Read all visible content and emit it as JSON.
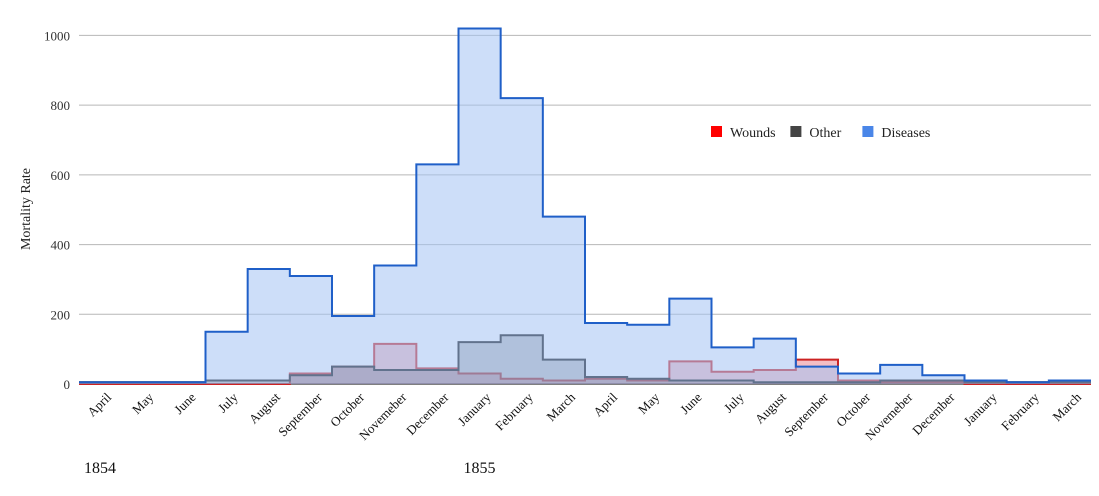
{
  "chart_data": {
    "type": "area",
    "title": "",
    "xlabel": "",
    "ylabel": "Mortality Rate",
    "ylim": [
      0,
      1050
    ],
    "yticks": [
      0,
      200,
      400,
      600,
      800,
      1000
    ],
    "grid": true,
    "legend_position": "top-right",
    "categories": [
      "April",
      "May",
      "June",
      "July",
      "August",
      "September",
      "October",
      "Novemeber",
      "December",
      "January",
      "February",
      "March",
      "April",
      "May",
      "June",
      "July",
      "August",
      "September",
      "October",
      "Novemeber",
      "December",
      "January",
      "February",
      "March"
    ],
    "year_labels": [
      {
        "label": "1854",
        "index": 0
      },
      {
        "label": "1855",
        "index": 9
      }
    ],
    "series": [
      {
        "name": "Wounds",
        "color": "#ff0000",
        "fill": "rgba(220,40,60,0.30)",
        "stroke": "#cc2222",
        "values": [
          0,
          0,
          0,
          0,
          0,
          30,
          50,
          115,
          45,
          30,
          15,
          10,
          15,
          10,
          65,
          35,
          40,
          70,
          10,
          5,
          5,
          0,
          0,
          0
        ]
      },
      {
        "name": "Other",
        "color": "#444444",
        "fill": "rgba(40,40,40,0.30)",
        "stroke": "#111111",
        "values": [
          5,
          5,
          5,
          10,
          10,
          25,
          50,
          40,
          40,
          120,
          140,
          70,
          20,
          15,
          10,
          10,
          5,
          5,
          5,
          10,
          10,
          5,
          5,
          5
        ]
      },
      {
        "name": "Diseases",
        "color": "#4a86e8",
        "fill": "rgba(164,194,244,0.55)",
        "stroke": "#1f5fc8",
        "values": [
          5,
          5,
          5,
          150,
          330,
          310,
          195,
          340,
          630,
          1020,
          820,
          480,
          175,
          170,
          245,
          105,
          130,
          50,
          30,
          55,
          25,
          10,
          5,
          10
        ]
      }
    ]
  }
}
